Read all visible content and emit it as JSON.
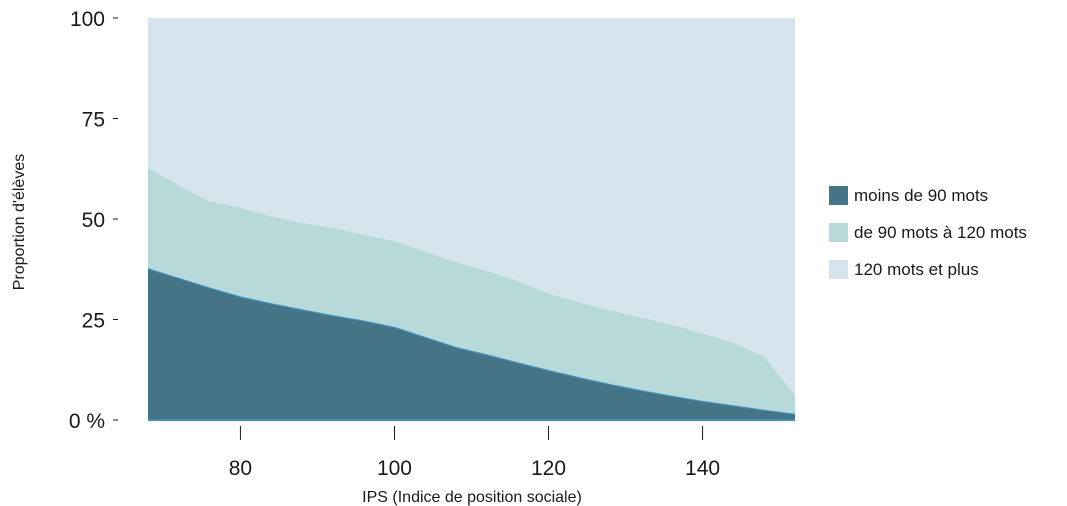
{
  "chart_data": {
    "type": "area",
    "stacked": true,
    "xlabel": "IPS (Indice de position sociale)",
    "ylabel": "Proportion d'élèves",
    "xlim": [
      68,
      152
    ],
    "ylim": [
      0,
      100
    ],
    "x_ticks": [
      80,
      100,
      120,
      140
    ],
    "y_ticks": [
      0,
      25,
      50,
      75,
      100
    ],
    "y_tick_labels": [
      "0 %",
      "25",
      "50",
      "75",
      "100"
    ],
    "x": [
      68,
      72,
      76,
      80,
      84,
      88,
      92,
      96,
      100,
      104,
      108,
      112,
      116,
      120,
      124,
      128,
      132,
      136,
      140,
      144,
      148,
      152
    ],
    "series": [
      {
        "name": "moins de 90 mots",
        "color": "#457486",
        "values": [
          37.6,
          35.2,
          32.8,
          30.6,
          28.9,
          27.4,
          25.9,
          24.6,
          23.0,
          20.5,
          18.0,
          16.2,
          14.2,
          12.3,
          10.5,
          8.8,
          7.3,
          5.9,
          4.6,
          3.5,
          2.4,
          1.4
        ]
      },
      {
        "name": "de 90 mots à 120 mots",
        "color": "#b7d9da",
        "values": [
          25.2,
          23.2,
          21.6,
          22.2,
          21.8,
          21.6,
          21.9,
          21.5,
          21.5,
          21.4,
          21.3,
          20.9,
          20.4,
          19.2,
          18.8,
          18.5,
          18.2,
          17.8,
          17.0,
          15.7,
          13.4,
          4.8
        ]
      },
      {
        "name": "120 mots et plus",
        "color": "#d6e5ed",
        "values": [
          37.2,
          41.6,
          45.6,
          47.2,
          49.3,
          51.0,
          52.2,
          53.9,
          55.5,
          58.1,
          60.7,
          62.9,
          65.4,
          68.5,
          70.7,
          72.7,
          74.5,
          76.3,
          78.4,
          80.8,
          84.2,
          93.8
        ]
      }
    ],
    "legend_position": "right",
    "grid": false
  }
}
